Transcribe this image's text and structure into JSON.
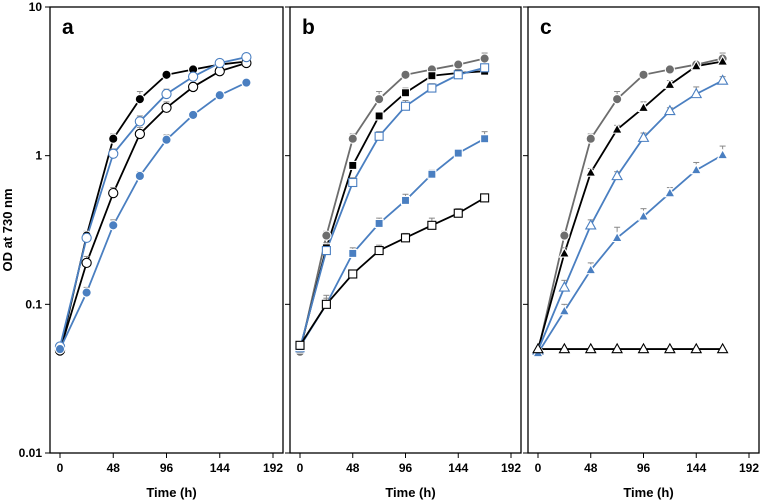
{
  "colors": {
    "black": "#000000",
    "gray": "#6d6d6d",
    "blue": "#4a7fc1",
    "white": "#ffffff"
  },
  "chart_data": [
    {
      "type": "line",
      "panel": "a",
      "xlabel": "Time (h)",
      "ylabel": "OD at 730 nm",
      "xlim": [
        0,
        192
      ],
      "xticks": [
        "0",
        "48",
        "96",
        "144",
        "192"
      ],
      "ylim": [
        0.01,
        10
      ],
      "yscale": "log",
      "yticks": [
        "0.01",
        "0.1",
        "1",
        "10"
      ],
      "series": [
        {
          "name": "black filled circles",
          "marker": "circle",
          "filled": true,
          "color": "#000000",
          "x": [
            0,
            24,
            48,
            72,
            96,
            120,
            144,
            168
          ],
          "y": [
            0.048,
            0.29,
            1.3,
            2.4,
            3.5,
            3.8,
            4.1,
            4.3
          ],
          "err": [
            0,
            0.02,
            0.1,
            0.3,
            0.2,
            0.2,
            0.2,
            0.2
          ]
        },
        {
          "name": "black open circles",
          "marker": "circle",
          "filled": false,
          "color": "#000000",
          "x": [
            0,
            24,
            48,
            72,
            96,
            120,
            144,
            168
          ],
          "y": [
            0.049,
            0.19,
            0.56,
            1.4,
            2.1,
            2.9,
            3.7,
            4.2
          ],
          "err": [
            0,
            0.02,
            0.05,
            0.15,
            0.2,
            0.2,
            0.2,
            0.2
          ]
        },
        {
          "name": "blue open circles",
          "marker": "circle",
          "filled": false,
          "color": "#4a7fc1",
          "x": [
            0,
            24,
            48,
            72,
            96,
            120,
            144,
            168
          ],
          "y": [
            0.052,
            0.28,
            1.03,
            1.7,
            2.6,
            3.4,
            4.2,
            4.6
          ],
          "err": [
            0,
            0.02,
            0.08,
            0.15,
            0.2,
            0.2,
            0.2,
            0.2
          ]
        },
        {
          "name": "blue filled circles",
          "marker": "circle",
          "filled": true,
          "color": "#4a7fc1",
          "x": [
            0,
            24,
            48,
            72,
            96,
            120,
            144,
            168
          ],
          "y": [
            0.05,
            0.12,
            0.34,
            0.73,
            1.28,
            1.88,
            2.55,
            3.1
          ],
          "err": [
            0,
            0.01,
            0.03,
            0.05,
            0.1,
            0.1,
            0.1,
            0.1
          ]
        }
      ]
    },
    {
      "type": "line",
      "panel": "b",
      "xlabel": "Time (h)",
      "xlim": [
        0,
        192
      ],
      "xticks": [
        "0",
        "48",
        "96",
        "144",
        "192"
      ],
      "ylim": [
        0.01,
        10
      ],
      "yscale": "log",
      "series": [
        {
          "name": "gray filled circles",
          "marker": "circle",
          "filled": true,
          "color": "#6d6d6d",
          "x": [
            0,
            24,
            48,
            72,
            96,
            120,
            144,
            168
          ],
          "y": [
            0.048,
            0.29,
            1.3,
            2.4,
            3.5,
            3.8,
            4.1,
            4.5
          ],
          "err": [
            0,
            0.02,
            0.1,
            0.3,
            0.2,
            0.2,
            0.2,
            0.4
          ]
        },
        {
          "name": "black filled squares",
          "marker": "square",
          "filled": true,
          "color": "#000000",
          "x": [
            0,
            24,
            48,
            72,
            96,
            120,
            144,
            168
          ],
          "y": [
            0.05,
            0.24,
            0.86,
            1.85,
            2.65,
            3.45,
            3.6,
            3.7
          ],
          "err": [
            0,
            0.02,
            0.05,
            0.1,
            0.2,
            0.2,
            0.2,
            0.2
          ]
        },
        {
          "name": "blue open squares",
          "marker": "square",
          "filled": false,
          "color": "#4a7fc1",
          "x": [
            0,
            24,
            48,
            72,
            96,
            120,
            144,
            168
          ],
          "y": [
            0.051,
            0.23,
            0.66,
            1.35,
            2.15,
            2.85,
            3.5,
            3.9
          ],
          "err": [
            0,
            0.02,
            0.05,
            0.1,
            0.2,
            0.2,
            0.2,
            0.2
          ]
        },
        {
          "name": "blue filled squares",
          "marker": "square",
          "filled": true,
          "color": "#4a7fc1",
          "x": [
            0,
            24,
            48,
            72,
            96,
            120,
            144,
            168
          ],
          "y": [
            0.052,
            0.1,
            0.22,
            0.35,
            0.5,
            0.75,
            1.04,
            1.3
          ],
          "err": [
            0,
            0.01,
            0.02,
            0.03,
            0.05,
            0.05,
            0.05,
            0.15
          ]
        },
        {
          "name": "black open squares",
          "marker": "square",
          "filled": false,
          "color": "#000000",
          "x": [
            0,
            24,
            48,
            72,
            96,
            120,
            144,
            168
          ],
          "y": [
            0.053,
            0.1,
            0.16,
            0.23,
            0.28,
            0.34,
            0.41,
            0.52
          ],
          "err": [
            0,
            0.015,
            0.01,
            0.02,
            0.02,
            0.04,
            0.03,
            0.03
          ]
        }
      ]
    },
    {
      "type": "line",
      "panel": "c",
      "xlabel": "Time (h)",
      "xlim": [
        0,
        192
      ],
      "xticks": [
        "0",
        "48",
        "96",
        "144",
        "192"
      ],
      "ylim": [
        0.01,
        10
      ],
      "yscale": "log",
      "series": [
        {
          "name": "gray filled circles",
          "marker": "circle",
          "filled": true,
          "color": "#6d6d6d",
          "x": [
            0,
            24,
            48,
            72,
            96,
            120,
            144,
            168
          ],
          "y": [
            0.048,
            0.29,
            1.3,
            2.4,
            3.5,
            3.8,
            4.1,
            4.5
          ],
          "err": [
            0,
            0.02,
            0.1,
            0.3,
            0.2,
            0.2,
            0.2,
            0.4
          ]
        },
        {
          "name": "black filled triangles",
          "marker": "triangle",
          "filled": true,
          "color": "#000000",
          "x": [
            0,
            24,
            48,
            72,
            96,
            120,
            144,
            168
          ],
          "y": [
            0.05,
            0.22,
            0.77,
            1.5,
            2.1,
            3.0,
            4.0,
            4.3
          ],
          "err": [
            0,
            0.02,
            0.05,
            0.1,
            0.2,
            0.2,
            0.2,
            0.2
          ]
        },
        {
          "name": "blue open triangles",
          "marker": "triangle",
          "filled": false,
          "color": "#4a7fc1",
          "x": [
            0,
            24,
            48,
            72,
            96,
            120,
            144,
            168
          ],
          "y": [
            0.049,
            0.13,
            0.34,
            0.73,
            1.32,
            2.0,
            2.6,
            3.2
          ],
          "err": [
            0,
            0.015,
            0.03,
            0.05,
            0.1,
            0.1,
            0.3,
            0.2
          ]
        },
        {
          "name": "blue filled triangles",
          "marker": "triangle",
          "filled": true,
          "color": "#4a7fc1",
          "x": [
            0,
            24,
            48,
            72,
            96,
            120,
            144,
            168
          ],
          "y": [
            0.047,
            0.09,
            0.17,
            0.28,
            0.39,
            0.56,
            0.8,
            1.01
          ],
          "err": [
            0,
            0.01,
            0.02,
            0.05,
            0.05,
            0.05,
            0.1,
            0.15
          ]
        },
        {
          "name": "black open triangles",
          "marker": "triangle",
          "filled": false,
          "color": "#000000",
          "x": [
            0,
            24,
            48,
            72,
            96,
            120,
            144,
            168
          ],
          "y": [
            0.05,
            0.05,
            0.05,
            0.05,
            0.05,
            0.05,
            0.05,
            0.05
          ],
          "err": [
            0,
            0,
            0,
            0,
            0,
            0,
            0,
            0
          ]
        }
      ]
    }
  ]
}
